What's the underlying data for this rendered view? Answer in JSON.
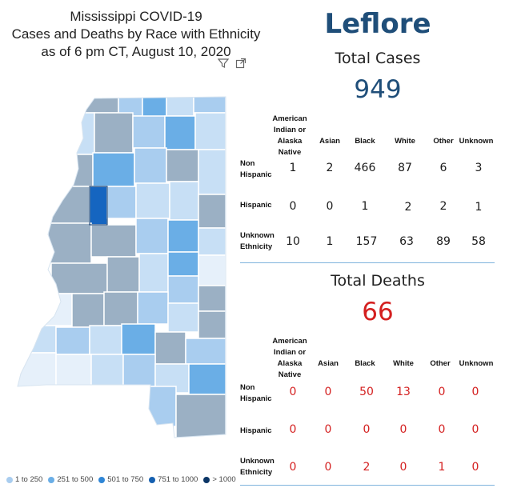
{
  "title": {
    "line1": "Mississippi COVID-19",
    "line2": "Cases and Deaths by Race with Ethnicity",
    "line3": "as of 6 pm CT, August 10, 2020"
  },
  "toolbar": {
    "filter_icon": "filter-icon",
    "focus_icon": "focus-mode-icon"
  },
  "county": "Leflore",
  "cases": {
    "label": "Total Cases",
    "total": "949",
    "columns": [
      "American Indian or Alaska Native",
      "Asian",
      "Black",
      "White",
      "Other",
      "Unknown"
    ],
    "rows": [
      {
        "label": "Non Hispanic",
        "values": [
          "1",
          "2",
          "466",
          "87",
          "6",
          "3"
        ]
      },
      {
        "label": "Hispanic",
        "values": [
          "0",
          "0",
          "1",
          "2",
          "2",
          "1"
        ]
      },
      {
        "label": "Unknown Ethnicity",
        "values": [
          "10",
          "1",
          "157",
          "63",
          "89",
          "58"
        ]
      }
    ]
  },
  "deaths": {
    "label": "Total Deaths",
    "total": "66",
    "columns": [
      "American Indian or Alaska Native",
      "Asian",
      "Black",
      "White",
      "Other",
      "Unknown"
    ],
    "rows": [
      {
        "label": "Non Hispanic",
        "values": [
          "0",
          "0",
          "50",
          "13",
          "0",
          "0"
        ]
      },
      {
        "label": "Hispanic",
        "values": [
          "0",
          "0",
          "0",
          "0",
          "0",
          "0"
        ]
      },
      {
        "label": "Unknown Ethnicity",
        "values": [
          "0",
          "0",
          "2",
          "0",
          "1",
          "0"
        ]
      }
    ]
  },
  "legend": [
    {
      "label": "1 to 250",
      "color": "#a9cdef"
    },
    {
      "label": "251 to 500",
      "color": "#6aaee6"
    },
    {
      "label": "501 to 750",
      "color": "#2f86d6"
    },
    {
      "label": "751 to 1000",
      "color": "#1560b0"
    },
    {
      "label": "> 1000",
      "color": "#0b3566"
    }
  ],
  "colors": {
    "county_title": "#1f4e79",
    "cases_total": "#1f4e79",
    "deaths": "#d42020",
    "separator": "#7fb3dc",
    "selected_county": "#1565c0",
    "unselected_county": "#9bb0c4"
  }
}
